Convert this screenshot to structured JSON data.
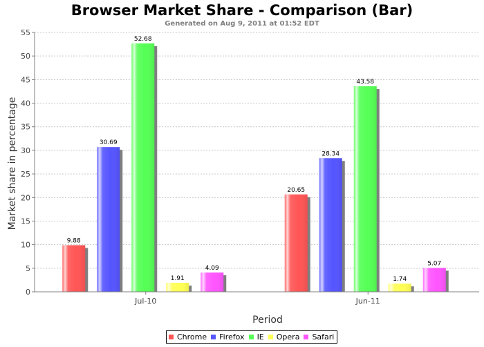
{
  "chart_data": {
    "type": "bar",
    "title": "Browser Market Share - Comparison (Bar)",
    "subtitle": "Generated on Aug 9, 2011 at 01:52 EDT",
    "xlabel": "Period",
    "ylabel": "Market share in percentage",
    "categories": [
      "Jul-10",
      "Jun-11"
    ],
    "series": [
      {
        "name": "Chrome",
        "color": "#ff5555",
        "values": [
          9.88,
          20.65
        ]
      },
      {
        "name": "Firefox",
        "color": "#5555ff",
        "values": [
          30.69,
          28.34
        ]
      },
      {
        "name": "IE",
        "color": "#55ff55",
        "values": [
          52.68,
          43.58
        ]
      },
      {
        "name": "Opera",
        "color": "#ffff55",
        "values": [
          1.91,
          1.74
        ]
      },
      {
        "name": "Safari",
        "color": "#ff55ff",
        "values": [
          4.09,
          5.07
        ]
      }
    ],
    "ylim": [
      0,
      55
    ],
    "yticks": [
      0,
      5,
      10,
      15,
      20,
      25,
      30,
      35,
      40,
      45,
      50,
      55
    ],
    "grid": true,
    "legend_position": "bottom"
  }
}
